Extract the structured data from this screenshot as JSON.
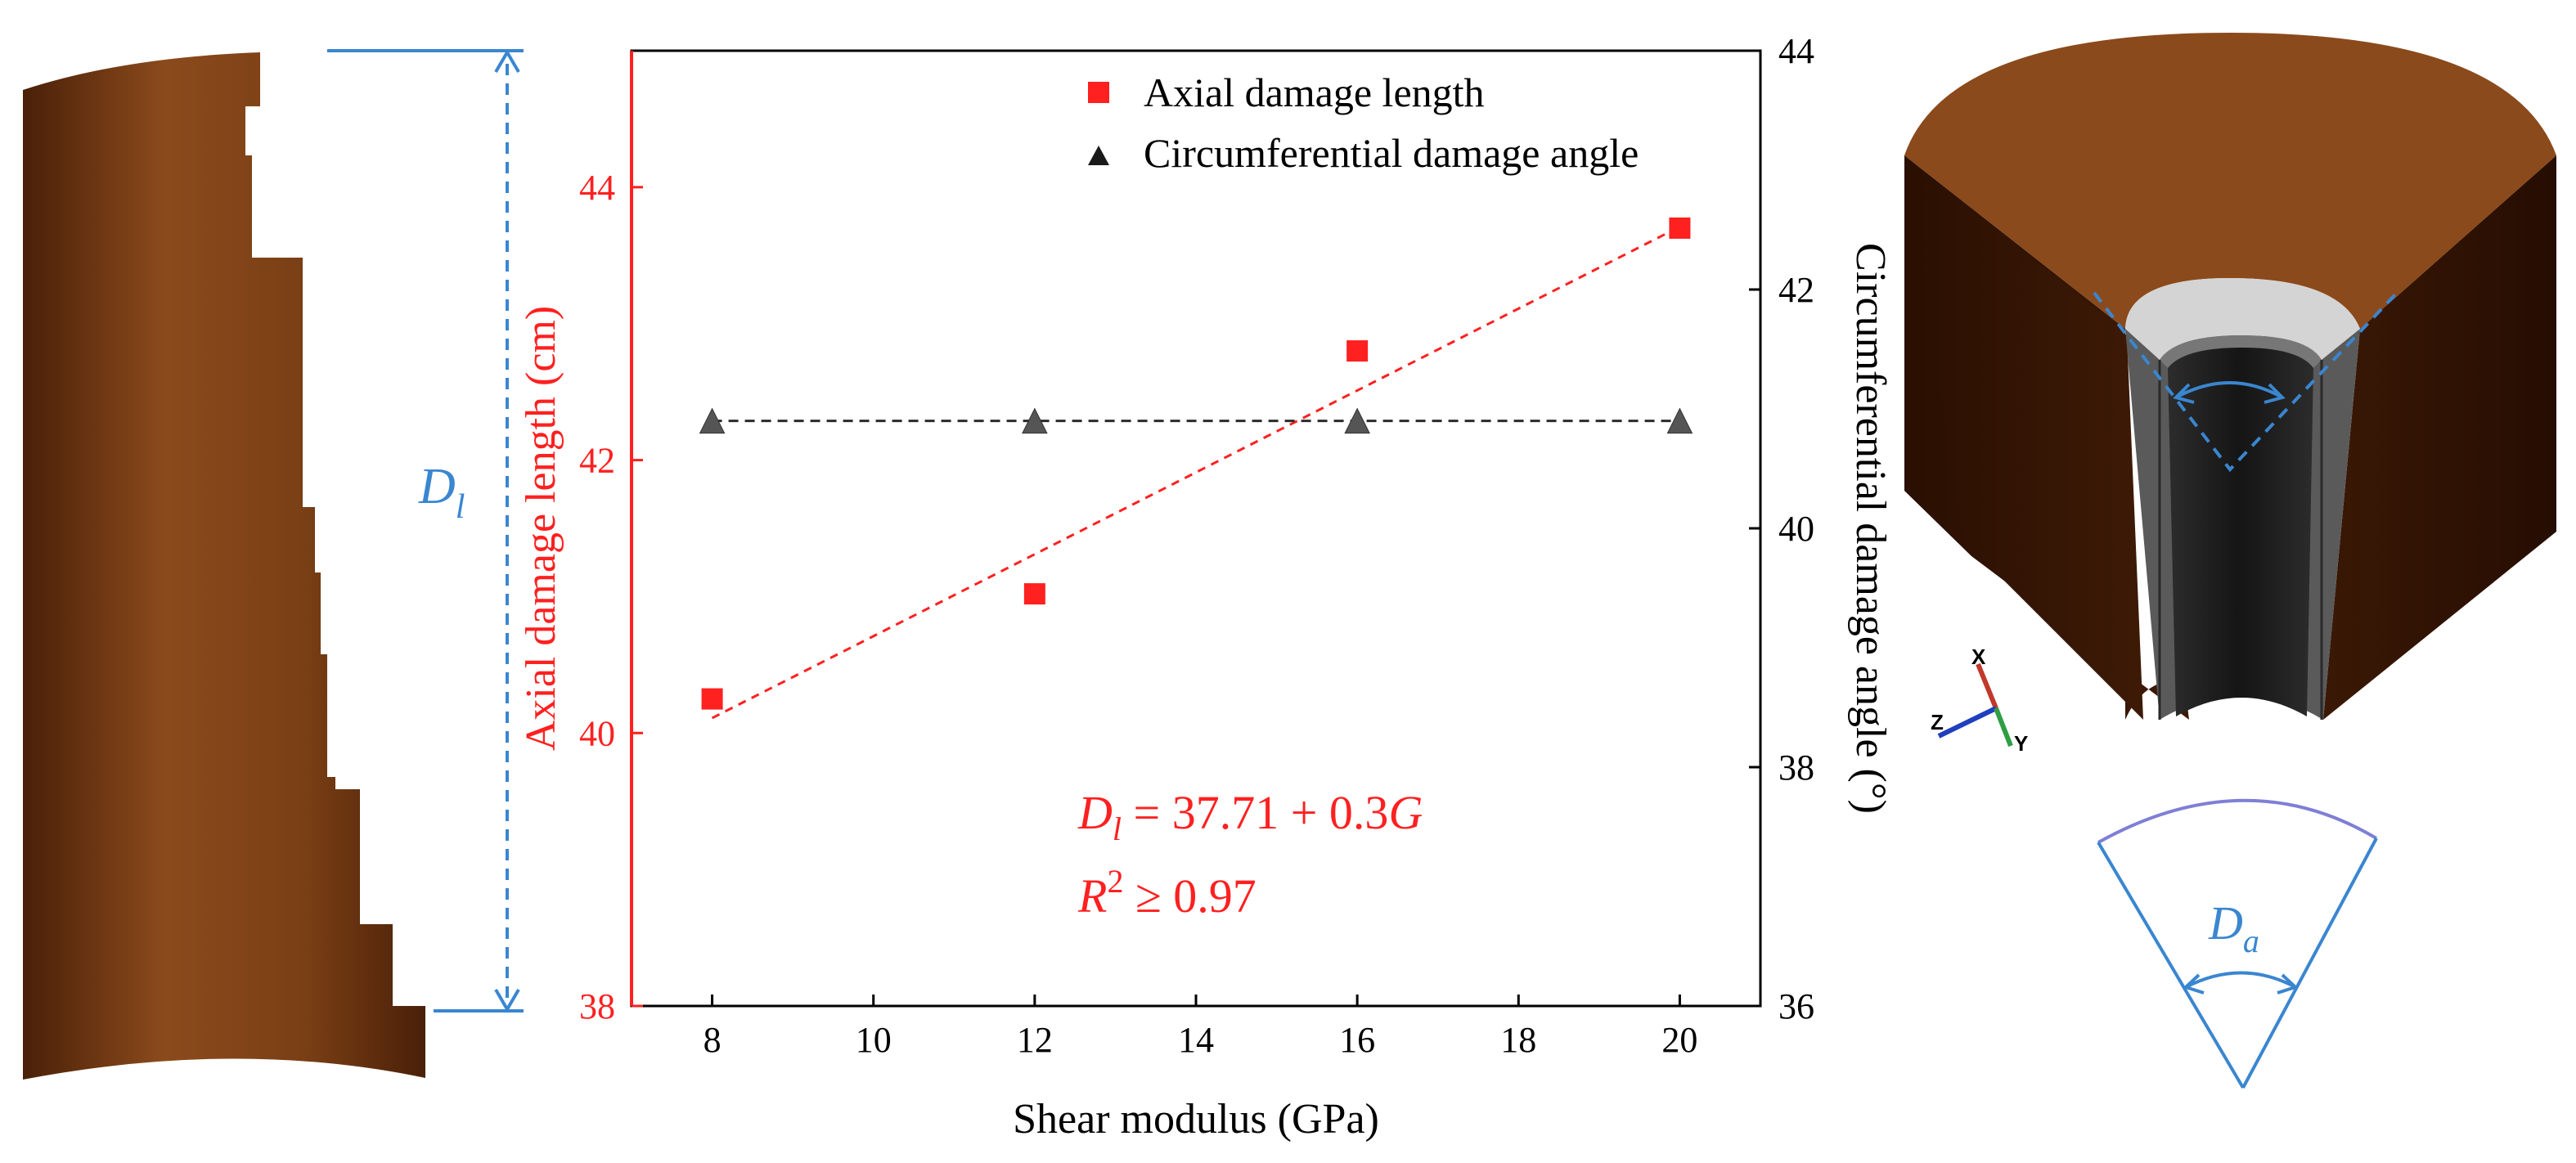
{
  "figure": {
    "left_panel": {
      "label_main": "D",
      "label_sub": "l"
    },
    "right_panel": {
      "label_main": "D",
      "label_sub": "a",
      "triad_axes": [
        "X",
        "Z",
        "Y"
      ]
    }
  },
  "colors": {
    "axial": "#ff2020",
    "circumferential": "#2b2b2b",
    "dimension": "#3a86d0",
    "rock": "#8b4a1c"
  },
  "chart_data": {
    "type": "scatter",
    "xlabel": "Shear modulus (GPa)",
    "x_ticks": [
      "8",
      "10",
      "12",
      "14",
      "16",
      "18",
      "20"
    ],
    "xlim": [
      7,
      21
    ],
    "ylabel_left": "Axial damage length (cm)",
    "ylim_left": [
      38,
      45
    ],
    "y_ticks_left": [
      "38",
      "40",
      "42",
      "44"
    ],
    "ylabel_right": "Circumferential damage angle (°)",
    "ylim_right": [
      36,
      44
    ],
    "y_ticks_right": [
      "36",
      "38",
      "40",
      "42",
      "44"
    ],
    "series": [
      {
        "name": "Axial damage length",
        "marker": "square",
        "axis": "left",
        "x": [
          8,
          12,
          16,
          20
        ],
        "y": [
          40.25,
          41.02,
          42.8,
          43.7
        ],
        "fit": {
          "x": [
            8,
            20
          ],
          "y": [
            40.11,
            43.71
          ]
        }
      },
      {
        "name": "Circumferential damage angle",
        "marker": "triangle",
        "axis": "right",
        "x": [
          8,
          12,
          16,
          20
        ],
        "y": [
          40.9,
          40.9,
          40.9,
          40.9
        ],
        "fit": {
          "x": [
            8,
            20
          ],
          "y": [
            40.9,
            40.9
          ]
        }
      }
    ],
    "annotation": {
      "eq_lhs_main": "D",
      "eq_lhs_sub": "l",
      "eq_rhs": " = 37.71 + 0.3",
      "eq_var": "G",
      "r2_main": "R",
      "r2_sup": "2",
      "r2_rhs": " ≥ 0.97"
    }
  }
}
